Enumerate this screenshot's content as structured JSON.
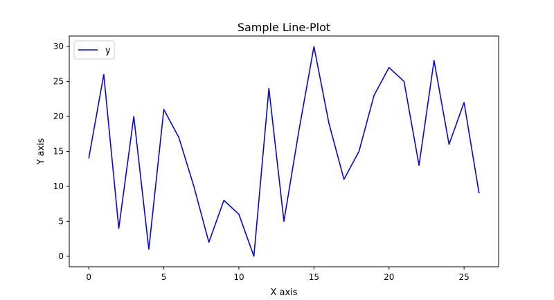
{
  "chart_data": {
    "type": "line",
    "title": "Sample Line-Plot",
    "xlabel": "X axis",
    "ylabel": "Y axis",
    "xlim": [
      -1.3,
      27.3
    ],
    "ylim": [
      -1.5,
      31.5
    ],
    "xticks": [
      0,
      5,
      10,
      15,
      20,
      25
    ],
    "yticks": [
      0,
      5,
      10,
      15,
      20,
      25,
      30
    ],
    "grid": false,
    "legend_position": "top-left",
    "series": [
      {
        "name": "y",
        "color": "#0000ff",
        "x": [
          0,
          1,
          2,
          3,
          4,
          5,
          6,
          7,
          8,
          9,
          10,
          11,
          12,
          13,
          14,
          15,
          16,
          17,
          18,
          19,
          20,
          21,
          22,
          23,
          24,
          25,
          26
        ],
        "y": [
          14,
          26,
          4,
          20,
          1,
          21,
          17,
          10,
          2,
          8,
          6,
          0,
          24,
          5,
          18,
          30,
          19,
          11,
          15,
          23,
          27,
          25,
          13,
          28,
          16,
          22,
          9
        ]
      }
    ]
  }
}
